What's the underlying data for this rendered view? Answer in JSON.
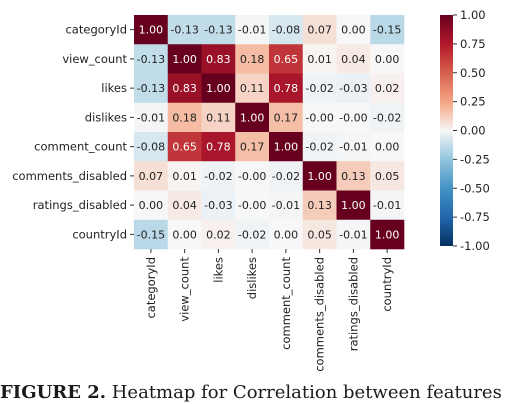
{
  "chart_data": {
    "type": "heatmap",
    "rows": [
      "categoryId",
      "view_count",
      "likes",
      "dislikes",
      "comment_count",
      "comments_disabled",
      "ratings_disabled",
      "countryId"
    ],
    "columns": [
      "categoryId",
      "view_count",
      "likes",
      "dislikes",
      "comment_count",
      "comments_disabled",
      "ratings_disabled",
      "countryId"
    ],
    "values": [
      [
        1.0,
        -0.13,
        -0.13,
        -0.01,
        -0.08,
        0.07,
        0.0,
        -0.15
      ],
      [
        -0.13,
        1.0,
        0.83,
        0.18,
        0.65,
        0.01,
        0.04,
        0.0
      ],
      [
        -0.13,
        0.83,
        1.0,
        0.11,
        0.78,
        -0.02,
        -0.03,
        0.02
      ],
      [
        -0.01,
        0.18,
        0.11,
        1.0,
        0.17,
        -0.0,
        -0.0,
        -0.02
      ],
      [
        -0.08,
        0.65,
        0.78,
        0.17,
        1.0,
        -0.02,
        -0.01,
        0.0
      ],
      [
        0.07,
        0.01,
        -0.02,
        -0.0,
        -0.02,
        1.0,
        0.13,
        0.05
      ],
      [
        0.0,
        0.04,
        -0.03,
        -0.0,
        -0.01,
        0.13,
        1.0,
        -0.01
      ],
      [
        -0.15,
        0.0,
        0.02,
        -0.02,
        0.0,
        0.05,
        -0.01,
        1.0
      ]
    ],
    "value_labels": [
      [
        "1.00",
        "-0.13",
        "-0.13",
        "-0.01",
        "-0.08",
        "0.07",
        "0.00",
        "-0.15"
      ],
      [
        "-0.13",
        "1.00",
        "0.83",
        "0.18",
        "0.65",
        "0.01",
        "0.04",
        "0.00"
      ],
      [
        "-0.13",
        "0.83",
        "1.00",
        "0.11",
        "0.78",
        "-0.02",
        "-0.03",
        "0.02"
      ],
      [
        "-0.01",
        "0.18",
        "0.11",
        "1.00",
        "0.17",
        "-0.00",
        "-0.00",
        "-0.02"
      ],
      [
        "-0.08",
        "0.65",
        "0.78",
        "0.17",
        "1.00",
        "-0.02",
        "-0.01",
        "0.00"
      ],
      [
        "0.07",
        "0.01",
        "-0.02",
        "-0.00",
        "-0.02",
        "1.00",
        "0.13",
        "0.05"
      ],
      [
        "0.00",
        "0.04",
        "-0.03",
        "-0.00",
        "-0.01",
        "0.13",
        "1.00",
        "-0.01"
      ],
      [
        "-0.15",
        "0.00",
        "0.02",
        "-0.02",
        "0.00",
        "0.05",
        "-0.01",
        "1.00"
      ]
    ],
    "colorbar": {
      "range": [
        -1.0,
        1.0
      ],
      "ticks": [
        1.0,
        0.75,
        0.5,
        0.25,
        0.0,
        -0.25,
        -0.5,
        -0.75,
        -1.0
      ],
      "tick_labels": [
        "1.00",
        "0.75",
        "0.50",
        "0.25",
        "0.00",
        "-0.25",
        "-0.50",
        "-0.75",
        "-1.00"
      ],
      "colormap": "RdBu_r"
    },
    "colors": {
      "high": "#67001f",
      "mid": "#f7f7f7",
      "low": "#053061"
    }
  },
  "caption": {
    "label": "FIGURE 2.",
    "text": " Heatmap for Correlation between features"
  }
}
